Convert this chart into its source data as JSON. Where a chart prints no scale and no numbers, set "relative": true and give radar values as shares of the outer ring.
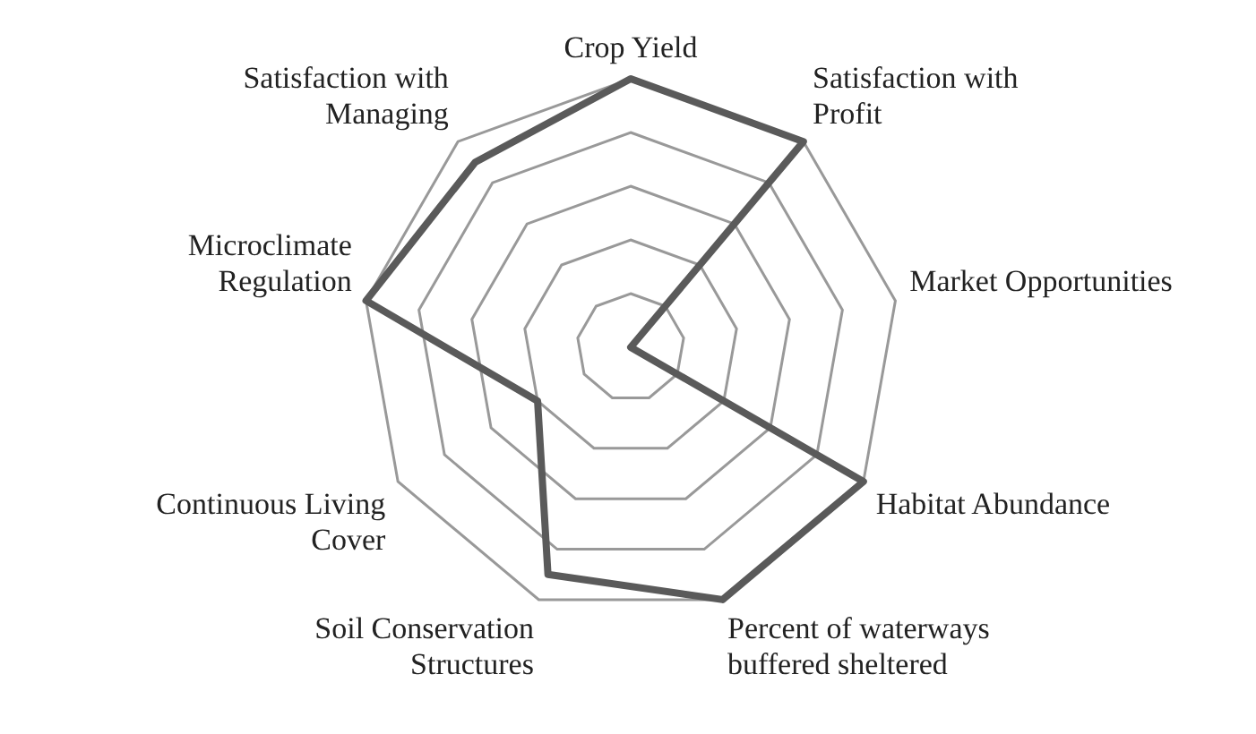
{
  "chart_data": {
    "type": "radar",
    "relative": true,
    "categories": [
      "Crop Yield",
      "Satisfaction with Profit",
      "Market Opportunities",
      "Habitat Abundance",
      "Percent of waterways buffered sheltered",
      "Soil Conservation Structures",
      "Continuous Living Cover",
      "Microclimate Regulation",
      "Satisfaction with Managing"
    ],
    "series": [
      {
        "color": "#5a5a5a",
        "values": [
          1,
          1,
          0,
          1,
          1,
          0.9,
          0.4,
          1,
          0.9
        ]
      }
    ],
    "grid": true
  }
}
